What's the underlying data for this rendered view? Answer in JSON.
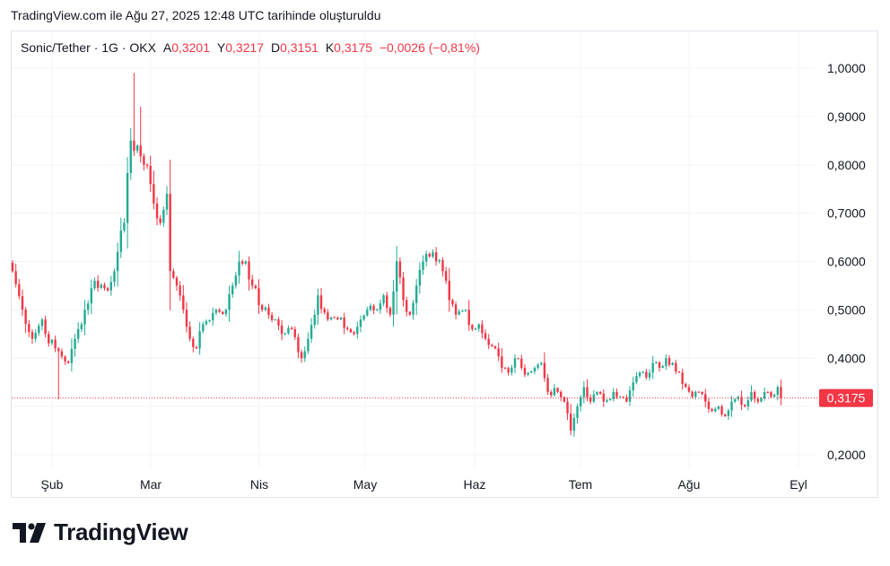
{
  "header": {
    "caption": "TradingView.com ile Ağu 27, 2025 12:48 UTC tarihinde oluşturuldu"
  },
  "legend": {
    "symbol": "Sonic/Tether · 1G · OKX",
    "open_label": "A",
    "open": "0,3201",
    "high_label": "Y",
    "high": "0,3217",
    "low_label": "D",
    "low": "0,3151",
    "close_label": "K",
    "close": "0,3175",
    "change": "−0,0026 (−0,81%)"
  },
  "price_badge": "0,3175",
  "brand": {
    "name": "TradingView",
    "logo_icon": "tradingview-logo-icon"
  },
  "colors": {
    "up": "#22ab94",
    "down": "#f23645",
    "grid": "#f0f3fa",
    "text": "#131722"
  },
  "chart_data": {
    "type": "candlestick",
    "x_tick_labels": [
      "Şub",
      "Mar",
      "Nis",
      "May",
      "Haz",
      "Tem",
      "Ağu",
      "Eyl"
    ],
    "y_tick_labels": [
      "1,0000",
      "0,9000",
      "0,8000",
      "0,7000",
      "0,6000",
      "0,5000",
      "0,4000",
      "0,2000"
    ],
    "y_ticks": [
      1.0,
      0.9,
      0.8,
      0.7,
      0.6,
      0.5,
      0.4,
      0.2
    ],
    "ylim": [
      0.19,
      1.03
    ],
    "last_price": 0.3175,
    "grid": true,
    "x_dates": [
      "2025-01-28",
      "2025-08-27"
    ],
    "close_anchors": [
      [
        0,
        0.58
      ],
      [
        3,
        0.5
      ],
      [
        6,
        0.44
      ],
      [
        9,
        0.48
      ],
      [
        10,
        0.45
      ],
      [
        13,
        0.42
      ],
      [
        17,
        0.39
      ],
      [
        20,
        0.46
      ],
      [
        25,
        0.56
      ],
      [
        29,
        0.54
      ],
      [
        32,
        0.62
      ],
      [
        34,
        0.68
      ],
      [
        36,
        0.85
      ],
      [
        38,
        0.84
      ],
      [
        40,
        0.8
      ],
      [
        42,
        0.76
      ],
      [
        43,
        0.72
      ],
      [
        45,
        0.68
      ],
      [
        47,
        0.74
      ],
      [
        48,
        0.58
      ],
      [
        50,
        0.55
      ],
      [
        52,
        0.5
      ],
      [
        54,
        0.44
      ],
      [
        56,
        0.42
      ],
      [
        58,
        0.47
      ],
      [
        62,
        0.5
      ],
      [
        65,
        0.5
      ],
      [
        67,
        0.55
      ],
      [
        69,
        0.6
      ],
      [
        71,
        0.6
      ],
      [
        73,
        0.55
      ],
      [
        76,
        0.5
      ],
      [
        80,
        0.48
      ],
      [
        82,
        0.45
      ],
      [
        85,
        0.46
      ],
      [
        88,
        0.4
      ],
      [
        90,
        0.44
      ],
      [
        93,
        0.53
      ],
      [
        96,
        0.48
      ],
      [
        99,
        0.48
      ],
      [
        102,
        0.46
      ],
      [
        104,
        0.45
      ],
      [
        106,
        0.48
      ],
      [
        108,
        0.5
      ],
      [
        111,
        0.5
      ],
      [
        113,
        0.53
      ],
      [
        115,
        0.49
      ],
      [
        117,
        0.6
      ],
      [
        119,
        0.52
      ],
      [
        121,
        0.49
      ],
      [
        123,
        0.55
      ],
      [
        125,
        0.6
      ],
      [
        127,
        0.61
      ],
      [
        129,
        0.6
      ],
      [
        131,
        0.58
      ],
      [
        133,
        0.52
      ],
      [
        135,
        0.49
      ],
      [
        138,
        0.5
      ],
      [
        140,
        0.46
      ],
      [
        142,
        0.47
      ],
      [
        144,
        0.44
      ],
      [
        147,
        0.42
      ],
      [
        149,
        0.38
      ],
      [
        151,
        0.37
      ],
      [
        153,
        0.4
      ],
      [
        155,
        0.38
      ],
      [
        157,
        0.37
      ],
      [
        159,
        0.38
      ],
      [
        161,
        0.39
      ],
      [
        163,
        0.33
      ],
      [
        166,
        0.33
      ],
      [
        168,
        0.31
      ],
      [
        170,
        0.25
      ],
      [
        172,
        0.3
      ],
      [
        174,
        0.34
      ],
      [
        176,
        0.31
      ],
      [
        178,
        0.33
      ],
      [
        180,
        0.31
      ],
      [
        183,
        0.33
      ],
      [
        185,
        0.32
      ],
      [
        187,
        0.31
      ],
      [
        189,
        0.35
      ],
      [
        191,
        0.37
      ],
      [
        193,
        0.36
      ],
      [
        195,
        0.39
      ],
      [
        197,
        0.38
      ],
      [
        199,
        0.4
      ],
      [
        201,
        0.39
      ],
      [
        203,
        0.37
      ],
      [
        205,
        0.34
      ],
      [
        207,
        0.32
      ],
      [
        209,
        0.33
      ],
      [
        211,
        0.31
      ],
      [
        213,
        0.29
      ],
      [
        215,
        0.3
      ],
      [
        217,
        0.28
      ],
      [
        219,
        0.31
      ],
      [
        221,
        0.32
      ],
      [
        223,
        0.3
      ],
      [
        225,
        0.33
      ],
      [
        227,
        0.31
      ],
      [
        229,
        0.33
      ],
      [
        231,
        0.32
      ],
      [
        233,
        0.34
      ],
      [
        234,
        0.3175
      ]
    ]
  }
}
